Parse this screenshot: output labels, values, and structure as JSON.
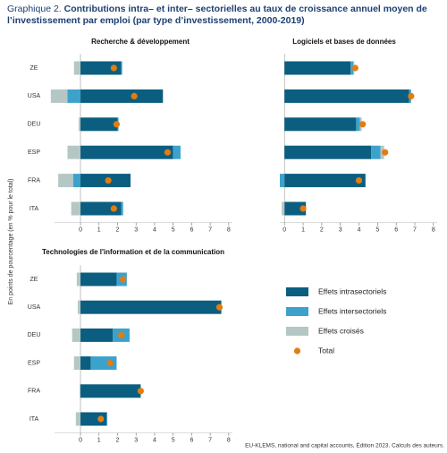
{
  "title_prefix": "Graphique 2.",
  "title": "Contributions intra– et inter– sectorielles au taux de croissance annuel moyen de l’investissement par emploi (par type d’investissement, 2000-2019)",
  "y_axis_label": "En points de pourcentage (en % pour le total)",
  "source": "EU-KLEMS, national and capital accounts, Édition 2023. Calculs des auteurs.",
  "legend": [
    {
      "name": "Effets intrasectoriels",
      "color": "#0b5e80"
    },
    {
      "name": "Effets intersectoriels",
      "color": "#3ca2cc"
    },
    {
      "name": "Effets croisés",
      "color": "#b4c7c4"
    },
    {
      "name": "Total",
      "color": "#e17d12"
    }
  ],
  "chart_data": [
    {
      "type": "bar",
      "title": "Recherche & développement",
      "categories": [
        "ZE",
        "USA",
        "DEU",
        "ESP",
        "FRA",
        "ITA"
      ],
      "series": [
        {
          "values": [
            2.2,
            4.45,
            2.0,
            5.0,
            2.7,
            2.2
          ]
        },
        {
          "values": [
            0.05,
            -0.7,
            0.05,
            0.4,
            -0.4,
            0.1
          ]
        },
        {
          "values": [
            -0.35,
            -0.9,
            -0.1,
            -0.7,
            -0.8,
            -0.5
          ]
        },
        {
          "values": [
            1.8,
            2.9,
            1.95,
            4.7,
            1.5,
            1.8
          ]
        }
      ],
      "xlim": [
        -1.4,
        8.2
      ],
      "xticks": [
        0,
        1,
        2,
        3,
        4,
        5,
        6,
        7,
        8
      ]
    },
    {
      "type": "bar",
      "title": "Logiciels et bases de données",
      "series": [
        {
          "values": [
            3.55,
            6.7,
            3.85,
            4.65,
            4.35,
            1.15
          ]
        },
        {
          "values": [
            0.15,
            0.1,
            0.2,
            0.5,
            -0.25,
            0.0
          ]
        },
        {
          "values": [
            0.05,
            0.0,
            0.1,
            0.2,
            0.0,
            -0.15
          ]
        },
        {
          "values": [
            3.8,
            6.8,
            4.2,
            5.4,
            4.0,
            1.0
          ]
        }
      ],
      "xlim": [
        -0.25,
        8.2
      ],
      "xticks": [
        0,
        1,
        2,
        3,
        4,
        5,
        6,
        7,
        8
      ]
    },
    {
      "type": "bar",
      "title": "Technologies de l'information et de la communication",
      "categories": [
        "ZE",
        "USA",
        "DEU",
        "ESP",
        "FRA",
        "ITA"
      ],
      "series": [
        {
          "values": [
            1.95,
            7.6,
            1.75,
            0.55,
            3.25,
            1.4
          ]
        },
        {
          "values": [
            0.55,
            0.0,
            0.9,
            1.4,
            0.0,
            0.05
          ]
        },
        {
          "values": [
            -0.2,
            -0.15,
            -0.45,
            -0.35,
            -0.05,
            -0.25
          ]
        },
        {
          "values": [
            2.3,
            7.5,
            2.2,
            1.6,
            3.25,
            1.1
          ]
        }
      ],
      "xlim": [
        -1.4,
        8.2
      ],
      "xticks": [
        0,
        1,
        2,
        3,
        4,
        5,
        6,
        7,
        8
      ]
    }
  ]
}
